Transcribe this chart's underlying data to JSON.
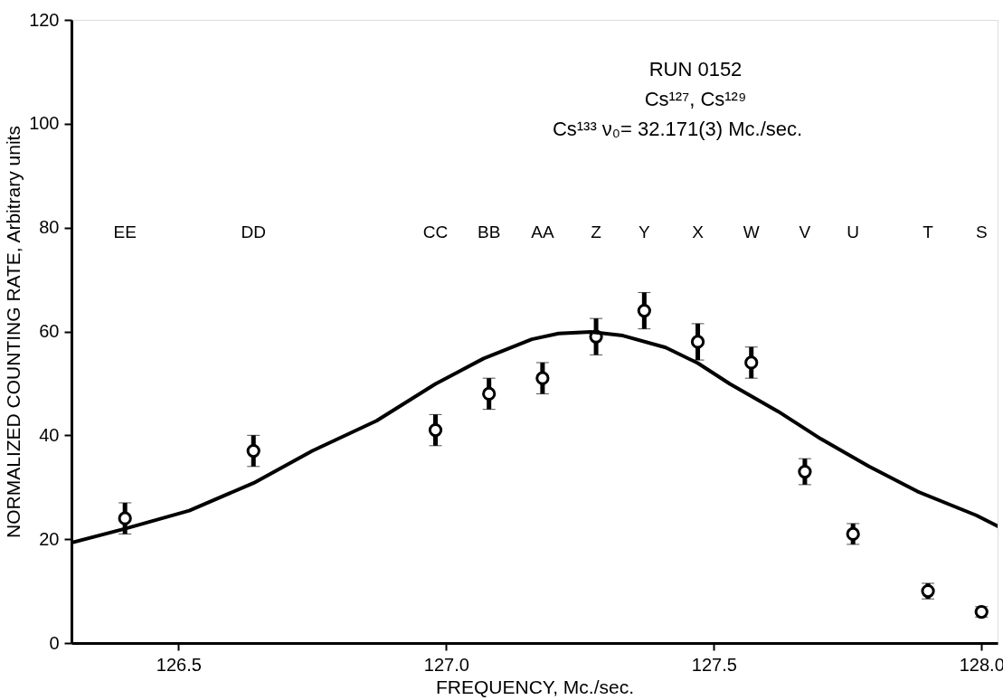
{
  "chart_data": {
    "type": "scatter",
    "xlabel": "FREQUENCY, Mc./sec.",
    "ylabel": "NORMALIZED COUNTING RATE, Arbitrary units",
    "xlim": [
      126.3,
      128.03
    ],
    "xticks": [
      126.5,
      {
        "value": 127,
        "label": "127.0"
      },
      127.5,
      {
        "value": 128,
        "label": "128.0"
      }
    ],
    "ylim": [
      0,
      120
    ],
    "yticks": [
      0,
      20,
      40,
      60,
      80,
      100,
      120
    ],
    "grid": false,
    "series": [
      {
        "marker": "circle",
        "color": "#000000",
        "x": [
          126.4,
          126.64,
          126.98,
          127.08,
          127.18,
          127.28,
          127.37,
          127.47,
          127.57,
          127.67,
          127.76,
          127.9,
          128.0
        ],
        "values": [
          24,
          37,
          41,
          48,
          51,
          59,
          64,
          58,
          54,
          33,
          21,
          10,
          6
        ],
        "errors": [
          3,
          3,
          3,
          3,
          3,
          3.5,
          3.5,
          3.5,
          3,
          2.5,
          2,
          1.5,
          1
        ]
      },
      {
        "type": "line",
        "marker": "none",
        "line_style": "solid",
        "color": "#000000",
        "x": [
          126.3,
          126.4,
          126.52,
          126.64,
          126.75,
          126.87,
          126.98,
          127.07,
          127.16,
          127.21,
          127.27,
          127.33,
          127.41,
          127.47,
          127.53,
          127.62,
          127.7,
          127.79,
          127.88,
          127.99,
          128.03
        ],
        "values": [
          19.3,
          22,
          25.5,
          30.8,
          37,
          42.8,
          49.9,
          54.8,
          58.5,
          59.6,
          59.9,
          59.2,
          56.9,
          53.9,
          49.9,
          44.6,
          39.3,
          34,
          29.2,
          24.6,
          22.5
        ]
      }
    ],
    "annotations": [
      "RUN  0152",
      "Cs¹²⁷, Cs¹²⁹",
      "Cs¹³³ ν₀= 32.171(3) Mc./sec.",
      "EE",
      "DD",
      "CC",
      "BB",
      "AA",
      "Z",
      "Y",
      "X",
      "W",
      "V",
      "U",
      "T",
      "S"
    ]
  }
}
